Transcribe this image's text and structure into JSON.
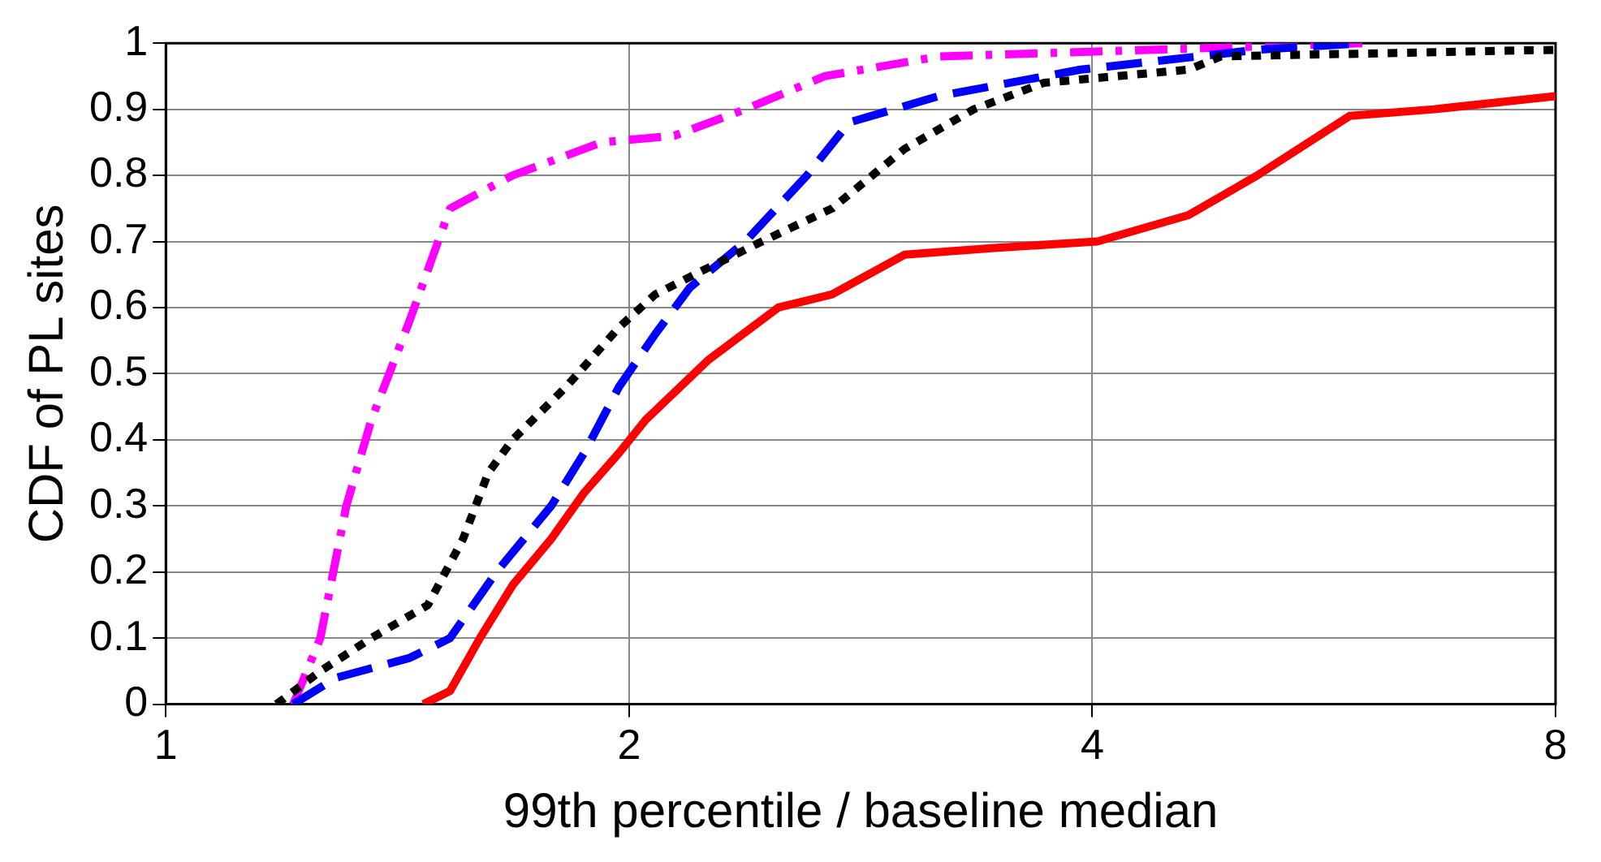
{
  "chart_data": {
    "type": "line",
    "xlabel": "99th percentile / baseline median",
    "ylabel": "CDF of PL sites",
    "log": "x",
    "xlim": [
      1,
      8
    ],
    "xticks": [
      1,
      2,
      4,
      8
    ],
    "ylim": [
      0,
      1
    ],
    "yticks": [
      0,
      0.1,
      0.2,
      0.3,
      0.4,
      0.5,
      0.6,
      0.7,
      0.8,
      0.9,
      1
    ],
    "grid": true,
    "legend": false,
    "marker": "none",
    "series": [
      {
        "color": "#ff0000",
        "line_style": "solid",
        "x": [
          1.47,
          1.53,
          1.6,
          1.68,
          1.78,
          1.87,
          1.97,
          2.05,
          2.25,
          2.5,
          2.71,
          3.02,
          3.44,
          4.03,
          4.62,
          5.12,
          5.88,
          6.67,
          8
        ],
        "values": [
          0,
          0.02,
          0.1,
          0.18,
          0.25,
          0.32,
          0.38,
          0.43,
          0.52,
          0.6,
          0.62,
          0.68,
          0.69,
          0.7,
          0.74,
          0.8,
          0.89,
          0.9,
          0.92
        ]
      },
      {
        "color": "#000000",
        "line_style": "dotted",
        "x": [
          1.18,
          1.26,
          1.36,
          1.48,
          1.56,
          1.62,
          1.68,
          1.82,
          1.97,
          2.08,
          2.25,
          2.44,
          2.71,
          3.02,
          3.35,
          3.72,
          4.62,
          4.85,
          8
        ],
        "values": [
          0,
          0.05,
          0.1,
          0.15,
          0.25,
          0.35,
          0.4,
          0.48,
          0.57,
          0.62,
          0.66,
          0.7,
          0.75,
          0.84,
          0.9,
          0.94,
          0.96,
          0.98,
          0.99
        ]
      },
      {
        "color": "#0000ff",
        "line_style": "dashed",
        "x": [
          1.21,
          1.29,
          1.44,
          1.53,
          1.64,
          1.78,
          1.87,
          1.97,
          2.08,
          2.19,
          2.38,
          2.61,
          2.78,
          3.18,
          3.93,
          5.12,
          6
        ],
        "values": [
          0,
          0.04,
          0.07,
          0.1,
          0.2,
          0.3,
          0.38,
          0.48,
          0.56,
          0.63,
          0.7,
          0.8,
          0.88,
          0.92,
          0.96,
          0.99,
          1
        ]
      },
      {
        "color": "#ff00ff",
        "line_style": "dashdot",
        "x": [
          1.21,
          1.26,
          1.31,
          1.36,
          1.44,
          1.53,
          1.68,
          1.92,
          2.14,
          2.38,
          2.68,
          3.18,
          6
        ],
        "values": [
          0,
          0.1,
          0.3,
          0.43,
          0.58,
          0.75,
          0.8,
          0.85,
          0.86,
          0.9,
          0.95,
          0.98,
          1
        ]
      }
    ]
  }
}
